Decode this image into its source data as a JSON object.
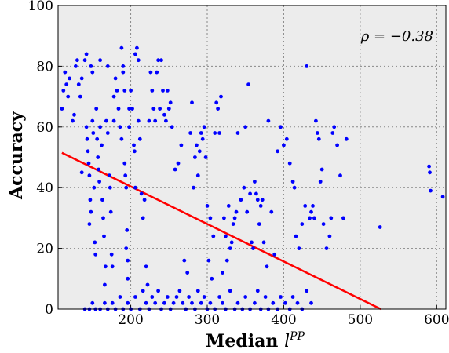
{
  "chart_data": {
    "type": "scatter",
    "title": "",
    "xlabel": "Median",
    "xlabel_symbol": "l",
    "xlabel_superscript": "PP",
    "ylabel": "Accuracy",
    "xlim": [
      105,
      612
    ],
    "ylim": [
      0,
      100
    ],
    "xticks": [
      "200",
      "300",
      "400",
      "500",
      "600"
    ],
    "xtick_values": [
      200,
      300,
      400,
      500,
      600
    ],
    "yticks": [
      "0",
      "20",
      "40",
      "60",
      "80",
      "100"
    ],
    "ytick_values": [
      0,
      20,
      40,
      60,
      80,
      100
    ],
    "grid": true,
    "background": "#ececec",
    "point_color": "#0000ff",
    "line_color": "#ff0000",
    "annotation": "ρ = −0.38",
    "fit_line": {
      "x": [
        110,
        527
      ],
      "y": [
        51.5,
        0
      ]
    },
    "series": [
      {
        "points": [
          [
            110,
            66
          ],
          [
            112,
            72
          ],
          [
            114,
            78
          ],
          [
            116,
            74
          ],
          [
            118,
            70
          ],
          [
            120,
            76
          ],
          [
            124,
            62
          ],
          [
            126,
            64
          ],
          [
            128,
            80
          ],
          [
            130,
            82
          ],
          [
            132,
            74
          ],
          [
            134,
            70
          ],
          [
            136,
            45
          ],
          [
            136,
            76
          ],
          [
            140,
            82
          ],
          [
            142,
            84
          ],
          [
            142,
            60
          ],
          [
            143,
            56
          ],
          [
            144,
            52
          ],
          [
            145,
            48
          ],
          [
            146,
            44
          ],
          [
            146,
            28
          ],
          [
            147,
            36
          ],
          [
            148,
            32
          ],
          [
            148,
            80
          ],
          [
            150,
            78
          ],
          [
            150,
            62
          ],
          [
            151,
            58
          ],
          [
            152,
            40
          ],
          [
            153,
            22
          ],
          [
            154,
            18
          ],
          [
            155,
            66
          ],
          [
            156,
            56
          ],
          [
            157,
            50
          ],
          [
            158,
            46
          ],
          [
            159,
            42
          ],
          [
            160,
            60
          ],
          [
            160,
            82
          ],
          [
            162,
            54
          ],
          [
            163,
            36
          ],
          [
            164,
            30
          ],
          [
            165,
            24
          ],
          [
            166,
            8
          ],
          [
            167,
            14
          ],
          [
            168,
            62
          ],
          [
            170,
            58
          ],
          [
            170,
            80
          ],
          [
            172,
            44
          ],
          [
            173,
            40
          ],
          [
            174,
            32
          ],
          [
            175,
            18
          ],
          [
            176,
            14
          ],
          [
            178,
            62
          ],
          [
            178,
            70
          ],
          [
            180,
            76
          ],
          [
            182,
            72
          ],
          [
            184,
            66
          ],
          [
            186,
            60
          ],
          [
            188,
            56
          ],
          [
            188,
            86
          ],
          [
            190,
            80
          ],
          [
            190,
            78
          ],
          [
            192,
            72
          ],
          [
            192,
            48
          ],
          [
            193,
            44
          ],
          [
            194,
            40
          ],
          [
            194,
            20
          ],
          [
            195,
            26
          ],
          [
            196,
            16
          ],
          [
            196,
            10
          ],
          [
            198,
            60
          ],
          [
            198,
            66
          ],
          [
            200,
            72
          ],
          [
            202,
            66
          ],
          [
            204,
            54
          ],
          [
            205,
            52
          ],
          [
            206,
            40
          ],
          [
            206,
            84
          ],
          [
            208,
            86
          ],
          [
            210,
            82
          ],
          [
            210,
            62
          ],
          [
            212,
            56
          ],
          [
            214,
            38
          ],
          [
            216,
            30
          ],
          [
            218,
            36
          ],
          [
            220,
            14
          ],
          [
            222,
            8
          ],
          [
            224,
            62
          ],
          [
            226,
            78
          ],
          [
            228,
            72
          ],
          [
            230,
            66
          ],
          [
            232,
            62
          ],
          [
            234,
            78
          ],
          [
            236,
            82
          ],
          [
            238,
            66
          ],
          [
            240,
            82
          ],
          [
            242,
            72
          ],
          [
            244,
            64
          ],
          [
            246,
            62
          ],
          [
            248,
            72
          ],
          [
            250,
            66
          ],
          [
            252,
            68
          ],
          [
            254,
            60
          ],
          [
            258,
            46
          ],
          [
            262,
            48
          ],
          [
            266,
            54
          ],
          [
            270,
            16
          ],
          [
            274,
            12
          ],
          [
            278,
            58
          ],
          [
            280,
            68
          ],
          [
            282,
            40
          ],
          [
            284,
            50
          ],
          [
            286,
            54
          ],
          [
            288,
            44
          ],
          [
            290,
            52
          ],
          [
            292,
            58
          ],
          [
            294,
            56
          ],
          [
            296,
            60
          ],
          [
            298,
            50
          ],
          [
            300,
            34
          ],
          [
            302,
            16
          ],
          [
            304,
            30
          ],
          [
            306,
            10
          ],
          [
            308,
            24
          ],
          [
            310,
            58
          ],
          [
            312,
            68
          ],
          [
            314,
            66
          ],
          [
            316,
            58
          ],
          [
            318,
            70
          ],
          [
            320,
            12
          ],
          [
            322,
            30
          ],
          [
            324,
            24
          ],
          [
            326,
            16
          ],
          [
            328,
            34
          ],
          [
            330,
            20
          ],
          [
            332,
            22
          ],
          [
            334,
            28
          ],
          [
            336,
            30
          ],
          [
            338,
            32
          ],
          [
            340,
            58
          ],
          [
            344,
            36
          ],
          [
            348,
            40
          ],
          [
            350,
            60
          ],
          [
            352,
            32
          ],
          [
            354,
            74
          ],
          [
            356,
            38
          ],
          [
            358,
            22
          ],
          [
            360,
            20
          ],
          [
            362,
            42
          ],
          [
            364,
            38
          ],
          [
            366,
            36
          ],
          [
            368,
            28
          ],
          [
            370,
            34
          ],
          [
            372,
            36
          ],
          [
            374,
            22
          ],
          [
            378,
            14
          ],
          [
            380,
            62
          ],
          [
            384,
            32
          ],
          [
            388,
            18
          ],
          [
            392,
            52
          ],
          [
            396,
            60
          ],
          [
            400,
            54
          ],
          [
            404,
            56
          ],
          [
            408,
            48
          ],
          [
            412,
            42
          ],
          [
            414,
            40
          ],
          [
            416,
            24
          ],
          [
            420,
            20
          ],
          [
            424,
            28
          ],
          [
            428,
            34
          ],
          [
            430,
            80
          ],
          [
            434,
            30
          ],
          [
            436,
            32
          ],
          [
            438,
            34
          ],
          [
            440,
            30
          ],
          [
            442,
            62
          ],
          [
            444,
            58
          ],
          [
            446,
            56
          ],
          [
            448,
            42
          ],
          [
            450,
            46
          ],
          [
            452,
            28
          ],
          [
            456,
            20
          ],
          [
            460,
            24
          ],
          [
            462,
            30
          ],
          [
            464,
            58
          ],
          [
            466,
            60
          ],
          [
            470,
            54
          ],
          [
            474,
            44
          ],
          [
            478,
            30
          ],
          [
            482,
            56
          ],
          [
            526,
            27
          ],
          [
            590,
            47
          ],
          [
            591,
            45
          ],
          [
            592,
            39
          ],
          [
            608,
            37
          ],
          [
            140,
            0
          ],
          [
            146,
            0
          ],
          [
            150,
            2
          ],
          [
            154,
            0
          ],
          [
            160,
            0
          ],
          [
            166,
            2
          ],
          [
            170,
            0
          ],
          [
            176,
            2
          ],
          [
            180,
            0
          ],
          [
            186,
            4
          ],
          [
            190,
            0
          ],
          [
            196,
            2
          ],
          [
            200,
            0
          ],
          [
            206,
            4
          ],
          [
            212,
            0
          ],
          [
            216,
            6
          ],
          [
            220,
            2
          ],
          [
            224,
            0
          ],
          [
            228,
            4
          ],
          [
            232,
            2
          ],
          [
            236,
            6
          ],
          [
            240,
            0
          ],
          [
            244,
            2
          ],
          [
            248,
            4
          ],
          [
            252,
            0
          ],
          [
            256,
            2
          ],
          [
            260,
            4
          ],
          [
            264,
            6
          ],
          [
            268,
            2
          ],
          [
            272,
            0
          ],
          [
            276,
            4
          ],
          [
            280,
            2
          ],
          [
            284,
            0
          ],
          [
            288,
            6
          ],
          [
            292,
            2
          ],
          [
            296,
            4
          ],
          [
            300,
            0
          ],
          [
            304,
            2
          ],
          [
            310,
            0
          ],
          [
            316,
            4
          ],
          [
            320,
            2
          ],
          [
            324,
            0
          ],
          [
            330,
            6
          ],
          [
            336,
            0
          ],
          [
            340,
            2
          ],
          [
            346,
            0
          ],
          [
            350,
            4
          ],
          [
            356,
            0
          ],
          [
            362,
            2
          ],
          [
            366,
            6
          ],
          [
            370,
            0
          ],
          [
            376,
            4
          ],
          [
            380,
            0
          ],
          [
            386,
            2
          ],
          [
            392,
            0
          ],
          [
            396,
            4
          ],
          [
            402,
            2
          ],
          [
            408,
            0
          ],
          [
            412,
            4
          ],
          [
            418,
            2
          ],
          [
            424,
            0
          ],
          [
            430,
            6
          ],
          [
            436,
            2
          ]
        ]
      }
    ]
  }
}
